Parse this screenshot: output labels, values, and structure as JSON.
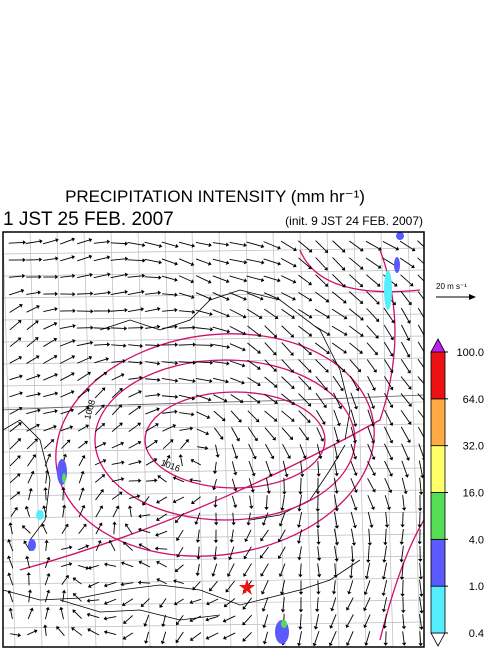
{
  "header": {
    "title": "PRECIPITATION INTENSITY (mm hr⁻¹)",
    "valid_time": "1 JST 25 FEB. 2007",
    "init_time": "(init. 9 JST 24 FEB. 2007)"
  },
  "map": {
    "contour_labels": [
      "1008",
      "1016"
    ]
  },
  "reference_vector": {
    "label": "20 m s⁻¹"
  },
  "colorbar": {
    "levels": [
      {
        "value": 0.4,
        "label": "0.4"
      },
      {
        "value": 1,
        "label": "1.0"
      },
      {
        "value": 4,
        "label": "4.0"
      },
      {
        "value": 16,
        "label": "16.0"
      },
      {
        "value": 32,
        "label": "32.0"
      },
      {
        "value": 64,
        "label": "64.0"
      },
      {
        "value": 100,
        "label": "100.0"
      }
    ],
    "colors": [
      "#ffffff",
      "#55eeff",
      "#5a5aff",
      "#55dd55",
      "#ffff66",
      "#ffaa44",
      "#ee1111",
      "#bb22ee"
    ]
  }
}
